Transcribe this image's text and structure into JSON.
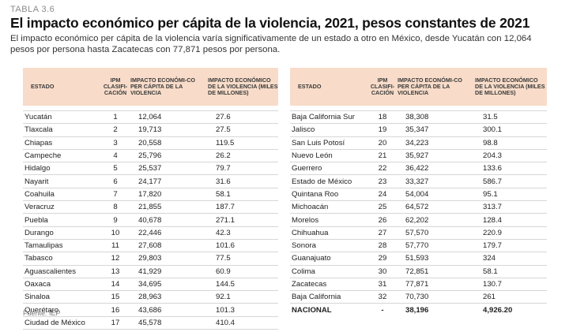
{
  "header": {
    "label": "TABLA 3.6",
    "title": "El impacto económico per cápita de la violencia, 2021, pesos constantes de 2021",
    "subtitle": "El impacto económico per cápita de la violencia varía significativamente de un estado a otro en México, desde Yucatán con 12,064 pesos por persona hasta Zacatecas con 77,871 pesos por persona."
  },
  "columns": [
    "ESTADO",
    "IPM CLASIFI-CACIÓN",
    "IMPACTO ECONÓMI-CO PER CÁPITA DE LA VIOLENCIA",
    "IMPACTO ECONÓMICO DE LA VIOLENCIA (MILES DE MILLONES)"
  ],
  "left_rows": [
    [
      "Yucatán",
      "1",
      "12,064",
      "27.6"
    ],
    [
      "Tlaxcala",
      "2",
      "19,713",
      "27.5"
    ],
    [
      "Chiapas",
      "3",
      "20,558",
      "119.5"
    ],
    [
      "Campeche",
      "4",
      "25,796",
      "26.2"
    ],
    [
      "Hidalgo",
      "5",
      "25,537",
      "79.7"
    ],
    [
      "Nayarit",
      "6",
      "24,177",
      "31.6"
    ],
    [
      "Coahuila",
      "7",
      "17,820",
      "58.1"
    ],
    [
      "Veracruz",
      "8",
      "21,855",
      "187.7"
    ],
    [
      "Puebla",
      "9",
      "40,678",
      "271.1"
    ],
    [
      "Durango",
      "10",
      "22,446",
      "42.3"
    ],
    [
      "Tamaulipas",
      "11",
      "27,608",
      "101.6"
    ],
    [
      "Tabasco",
      "12",
      "29,803",
      "77.5"
    ],
    [
      "Aguascalientes",
      "13",
      "41,929",
      "60.9"
    ],
    [
      "Oaxaca",
      "14",
      "34,695",
      "144.5"
    ],
    [
      "Sinaloa",
      "15",
      "28,963",
      "92.1"
    ],
    [
      "Querétaro",
      "16",
      "43,686",
      "101.3"
    ],
    [
      "Ciudad de México",
      "17",
      "45,578",
      "410.4"
    ]
  ],
  "right_rows": [
    [
      "Baja California Sur",
      "18",
      "38,308",
      "31.5"
    ],
    [
      "Jalisco",
      "19",
      "35,347",
      "300.1"
    ],
    [
      "San Luis Potosí",
      "20",
      "34,223",
      "98.8"
    ],
    [
      "Nuevo León",
      "21",
      "35,927",
      "204.3"
    ],
    [
      "Guerrero",
      "22",
      "36,422",
      "133.6"
    ],
    [
      "Estado de México",
      "23",
      "33,327",
      "586.7"
    ],
    [
      "Quintana Roo",
      "24",
      "54,004",
      "95.1"
    ],
    [
      "Michoacán",
      "25",
      "64,572",
      "313.7"
    ],
    [
      "Morelos",
      "26",
      "62,202",
      "128.4"
    ],
    [
      "Chihuahua",
      "27",
      "57,570",
      "220.9"
    ],
    [
      "Sonora",
      "28",
      "57,770",
      "179.7"
    ],
    [
      "Guanajuato",
      "29",
      "51,593",
      "324"
    ],
    [
      "Colima",
      "30",
      "72,851",
      "58.1"
    ],
    [
      "Zacatecas",
      "31",
      "77,871",
      "130.7"
    ],
    [
      "Baja California",
      "32",
      "70,730",
      "261"
    ]
  ],
  "national_row": [
    "NACIONAL",
    "-",
    "38,196",
    "4,926.20"
  ],
  "source": "Fuente: IEP",
  "colors": {
    "header_bg": "#f8dcc9",
    "rule": "#d6d6d6"
  }
}
